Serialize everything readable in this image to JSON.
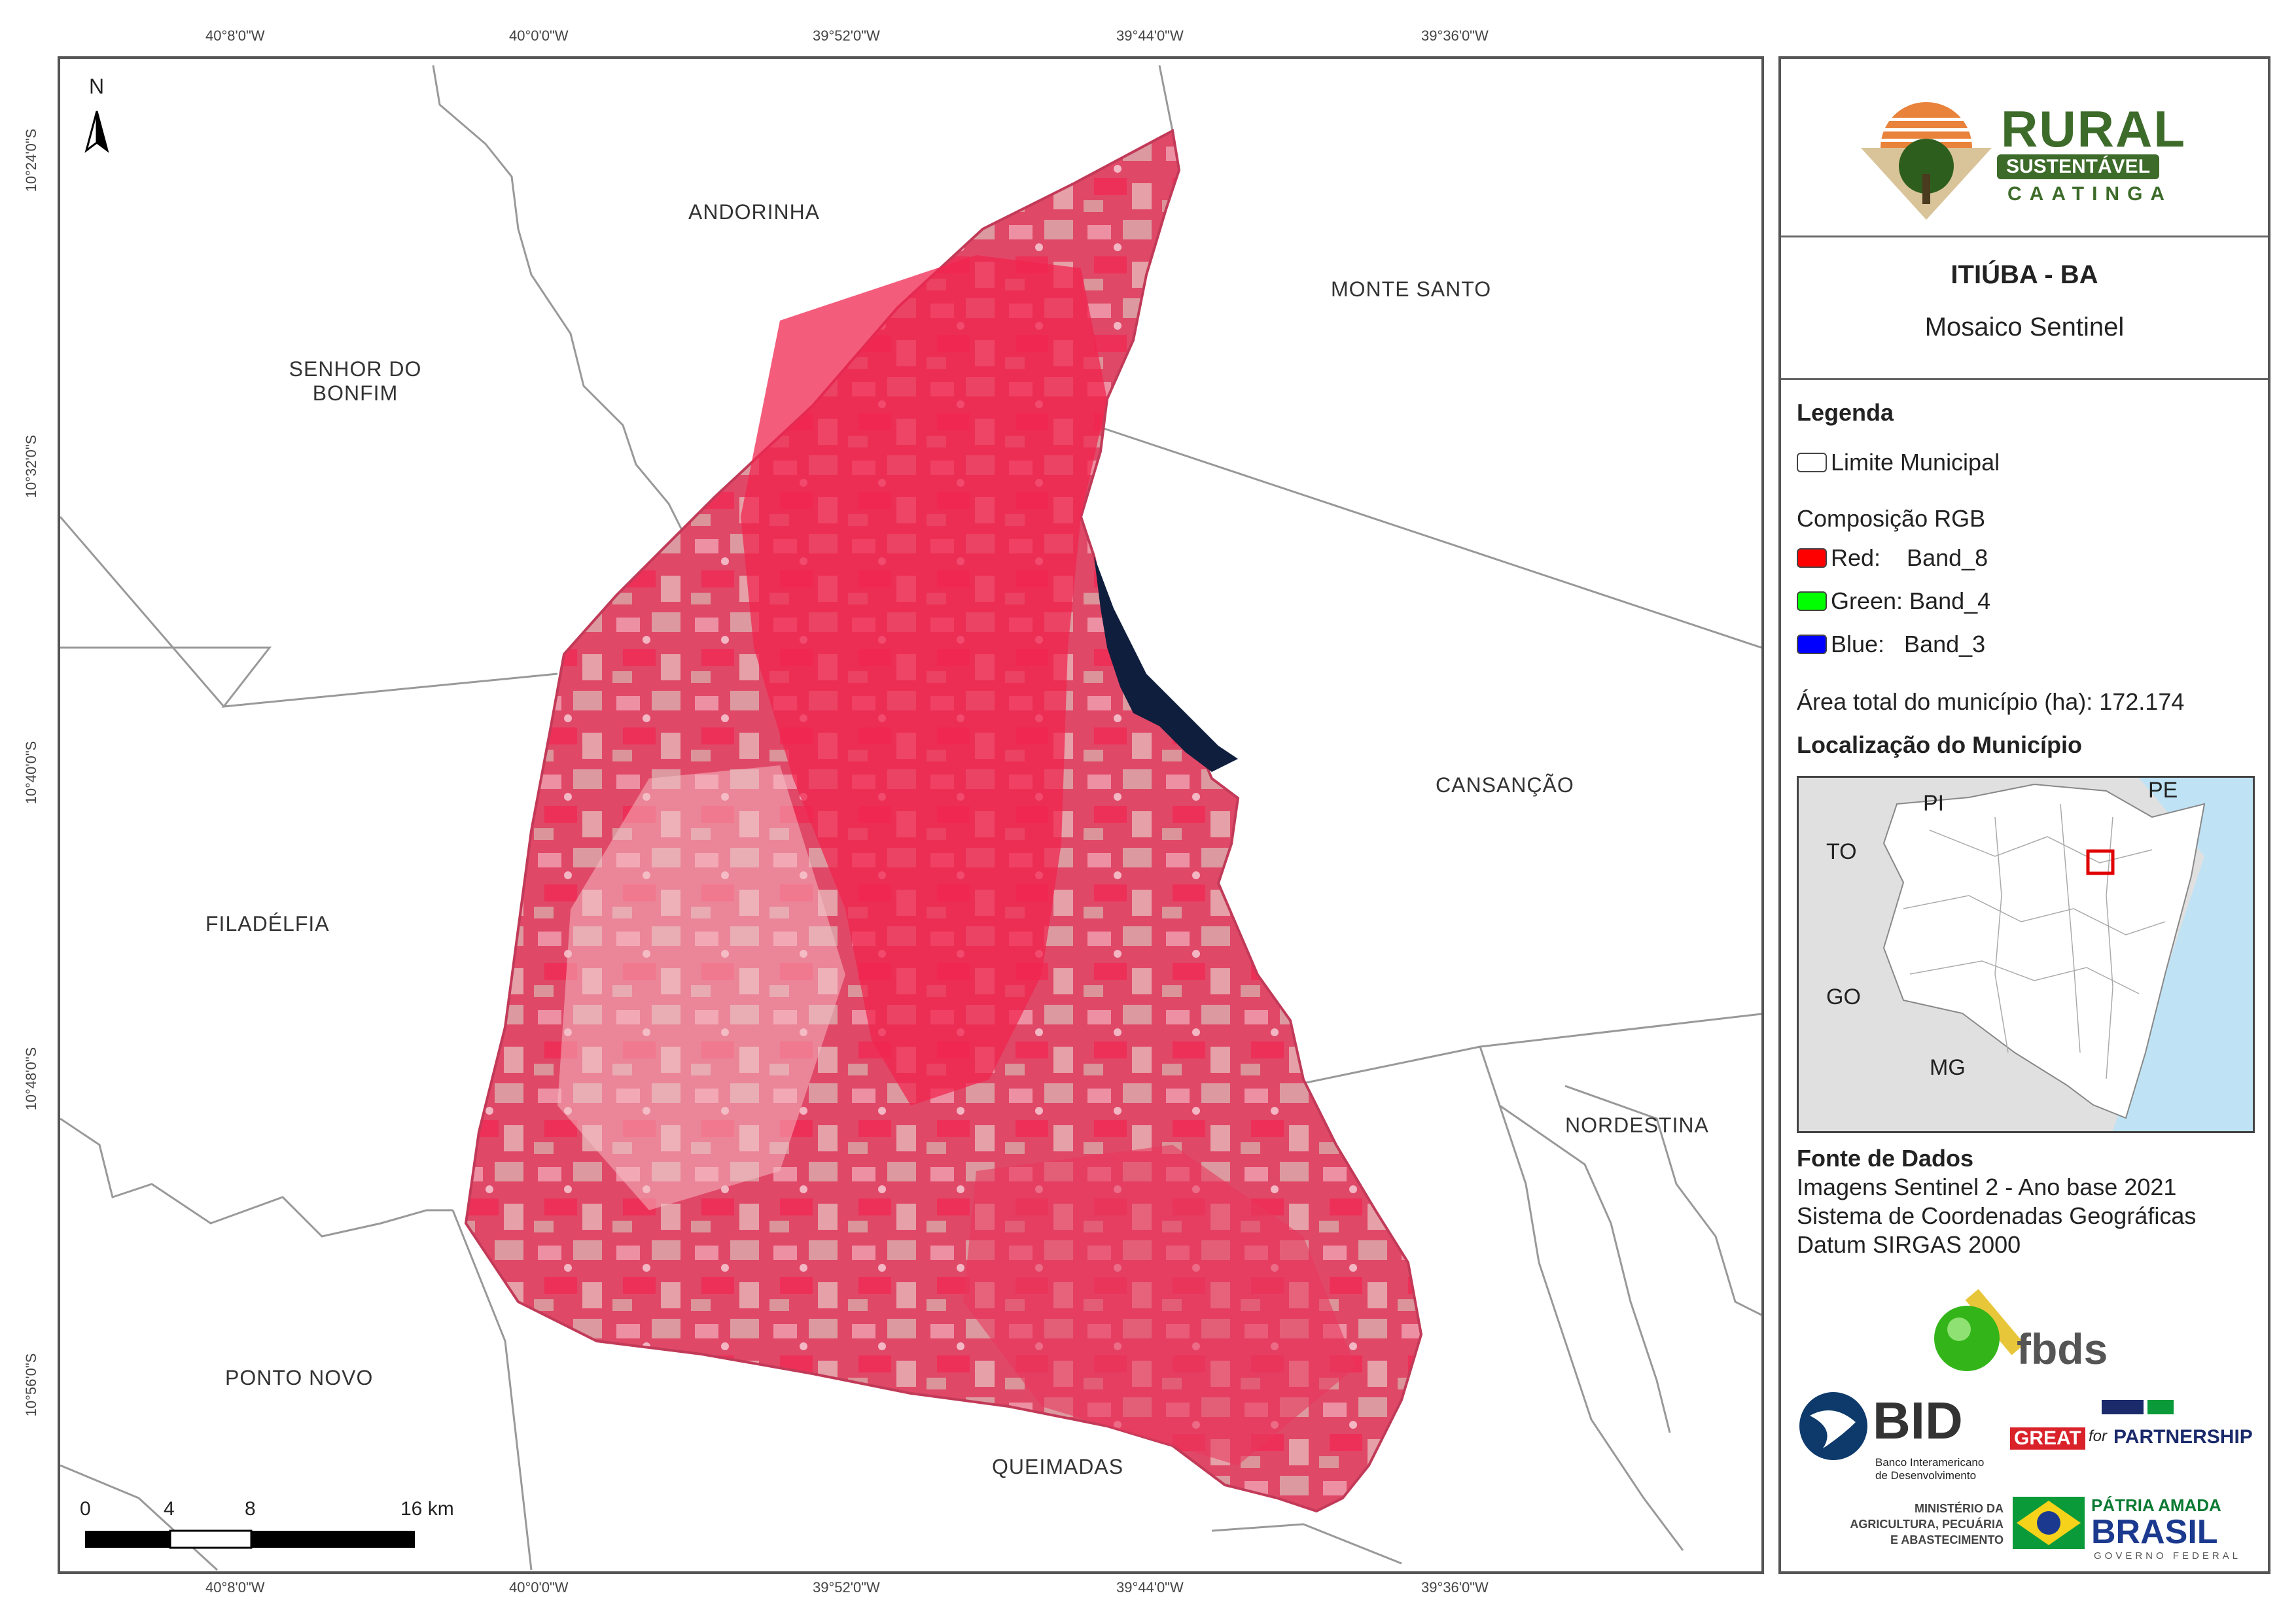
{
  "coords": {
    "top": [
      "40°8'0\"W",
      "40°0'0\"W",
      "39°52'0\"W",
      "39°44'0\"W",
      "39°36'0\"W"
    ],
    "bottom": [
      "40°8'0\"W",
      "40°0'0\"W",
      "39°52'0\"W",
      "39°44'0\"W",
      "39°36'0\"W"
    ],
    "left": [
      "10°24'0\"S",
      "10°32'0\"S",
      "10°40'0\"S",
      "10°48'0\"S",
      "10°56'0\"S"
    ]
  },
  "north_label": "N",
  "municipalities": {
    "andorinha": "ANDORINHA",
    "monte_santo": "MONTE SANTO",
    "senhor_do_bonfim_1": "SENHOR DO",
    "senhor_do_bonfim_2": "BONFIM",
    "cansancao": "CANSANÇÃO",
    "filadelfia": "FILADÉLFIA",
    "nordestina": "NORDESTINA",
    "ponto_novo": "PONTO NOVO",
    "queimadas": "QUEIMADAS"
  },
  "scale_bar": {
    "labels": [
      "0",
      "4",
      "8",
      "16 km"
    ]
  },
  "logo": {
    "line1": "RURAL",
    "line2": "SUSTENTÁVEL",
    "line3": "CAATINGA"
  },
  "title": {
    "main": "ITIÚBA - BA",
    "sub": "Mosaico Sentinel"
  },
  "legend": {
    "heading": "Legenda",
    "limit_label": "Limite Municipal",
    "rgb_heading": "Composição RGB",
    "red": "Red:    Band_8",
    "green": "Green: Band_4",
    "blue": "Blue:   Band_3",
    "area": "Área total do município (ha): 172.174",
    "location_heading": "Localização do Município"
  },
  "colors": {
    "red": "#ff0000",
    "green": "#00ff00",
    "blue": "#0000ff",
    "imagery": "#e84a6a",
    "ocean": "#bfe3f5",
    "logo_green": "#3d6b2a"
  },
  "inset_labels": {
    "pi": "PI",
    "pe": "PE",
    "to": "TO",
    "go": "GO",
    "mg": "MG"
  },
  "sources": {
    "heading": "Fonte de Dados",
    "line1": "Imagens Sentinel 2 - Ano base 2021",
    "line2": "Sistema de Coordenadas Geográficas",
    "line3": "Datum SIRGAS 2000"
  },
  "partners": {
    "fbds": "fbds",
    "bid": "BID",
    "bid_sub1": "Banco Interamericano",
    "bid_sub2": "de Desenvolvimento",
    "great": "GREAT",
    "for": "for",
    "partnership": "PARTNERSHIP",
    "ministerio1": "MINISTÉRIO DA",
    "ministerio2": "AGRICULTURA, PECUÁRIA",
    "ministerio3": "E ABASTECIMENTO",
    "patria": "PÁTRIA AMADA",
    "brasil": "BRASIL",
    "governo": "GOVERNO FEDERAL"
  }
}
